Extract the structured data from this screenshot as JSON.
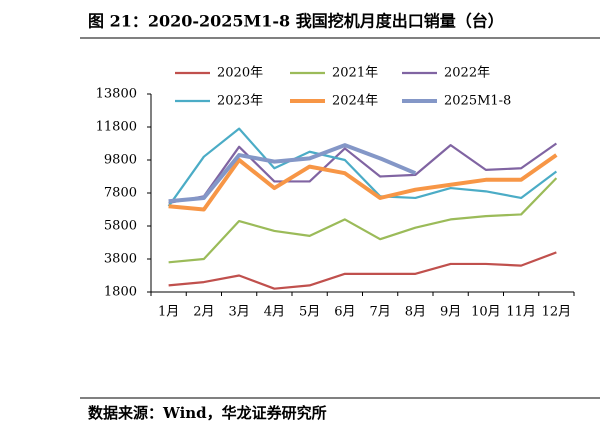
{
  "chart_data": {
    "type": "line",
    "title": "图 21：2020-2025M1-8 我国挖机月度出口销量（台）",
    "source": "数据来源：Wind，华龙证券研究所",
    "categories": [
      "1月",
      "2月",
      "3月",
      "4月",
      "5月",
      "6月",
      "7月",
      "8月",
      "9月",
      "10月",
      "11月",
      "12月"
    ],
    "series": [
      {
        "name": "2020年",
        "color": "#c0504d",
        "values": [
          2200,
          2400,
          2800,
          2000,
          2200,
          2900,
          2900,
          2900,
          3500,
          3500,
          3400,
          4200
        ]
      },
      {
        "name": "2021年",
        "color": "#9bbb59",
        "values": [
          3600,
          3800,
          6100,
          5500,
          5200,
          6200,
          5000,
          5700,
          6200,
          6400,
          6500,
          8700
        ]
      },
      {
        "name": "2022年",
        "color": "#8064a2",
        "values": [
          7200,
          7600,
          10600,
          8500,
          8500,
          10500,
          8800,
          8900,
          10700,
          9200,
          9300,
          10800
        ]
      },
      {
        "name": "2023年",
        "color": "#4bacc6",
        "values": [
          7000,
          10000,
          11700,
          9300,
          10300,
          9800,
          7600,
          7500,
          8100,
          7900,
          7500,
          9100
        ]
      },
      {
        "name": "2024年",
        "color": "#f79646",
        "values": [
          7000,
          6800,
          9800,
          8100,
          9400,
          9000,
          7500,
          8000,
          8300,
          8600,
          8600,
          10100
        ]
      },
      {
        "name": "2025M1-8",
        "color": "#8497c7",
        "values": [
          7300,
          7500,
          10100,
          9700,
          9900,
          10700,
          9900,
          9000,
          null,
          null,
          null,
          null
        ]
      }
    ],
    "ylim": [
      1800,
      13800
    ],
    "yticks": [
      1800,
      3800,
      5800,
      7800,
      9800,
      11800,
      13800
    ]
  }
}
